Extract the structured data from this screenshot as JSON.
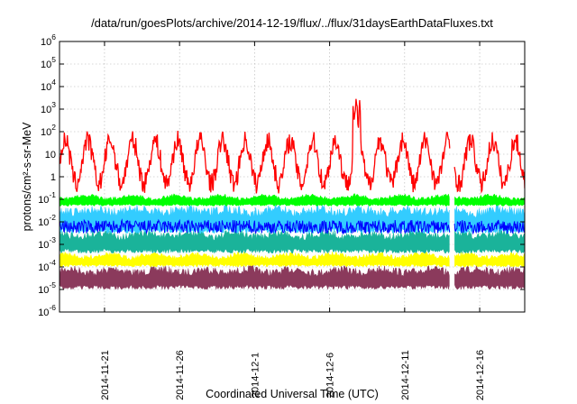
{
  "chart_data": {
    "type": "area",
    "title": "/data/run/goesPlots/archive/2014-12-19/flux/../flux/31daysEarthDataFluxes.txt",
    "xlabel": "Coordinated Universal Time (UTC)",
    "ylabel": "protons/cm²-s-sr-MeV",
    "y_scale": "log",
    "ylim": [
      1e-06,
      1000000.0
    ],
    "y_ticks": [
      {
        "base": "10",
        "exp": "-6"
      },
      {
        "base": "10",
        "exp": "-5"
      },
      {
        "base": "10",
        "exp": "-4"
      },
      {
        "base": "10",
        "exp": "-3"
      },
      {
        "base": "10",
        "exp": "-2"
      },
      {
        "base": "10",
        "exp": "-1"
      },
      {
        "base": "1",
        "exp": ""
      },
      {
        "base": "10",
        "exp": ""
      },
      {
        "base": "10",
        "exp": "2"
      },
      {
        "base": "10",
        "exp": "3"
      },
      {
        "base": "10",
        "exp": "4"
      },
      {
        "base": "10",
        "exp": "5"
      },
      {
        "base": "10",
        "exp": "6"
      }
    ],
    "xlim": [
      "2014-11-18",
      "2014-12-19"
    ],
    "x_tick_labels": [
      "2014-11-21",
      "2014-11-26",
      "2014-12-1",
      "2014-12-6",
      "2014-12-11",
      "2014-12-16"
    ],
    "grid": true,
    "legend": "none",
    "data_gap": [
      "2014-12-14",
      "2014-12-14.3"
    ],
    "series": [
      {
        "color": "#8b3a5c",
        "low": 1e-05,
        "high": 0.0001,
        "fill": true
      },
      {
        "color": "#ffff00",
        "low": 0.0001,
        "high": 0.0004,
        "fill": true
      },
      {
        "color": "#1ab39a",
        "low": 0.0004,
        "high": 0.004,
        "fill": true
      },
      {
        "color": "#33ccff",
        "low": 0.003,
        "high": 0.05,
        "fill": true
      },
      {
        "color": "#00ff00",
        "low": 0.05,
        "high": 0.15,
        "fill": true
      },
      {
        "color": "#0000ff",
        "low": 0.003,
        "high": 0.012,
        "fill": false
      },
      {
        "color": "#ff0000",
        "low": 0.5,
        "high": 40,
        "fill": false,
        "peak": 5000,
        "peak_date": "2014-12-7.8"
      }
    ]
  }
}
